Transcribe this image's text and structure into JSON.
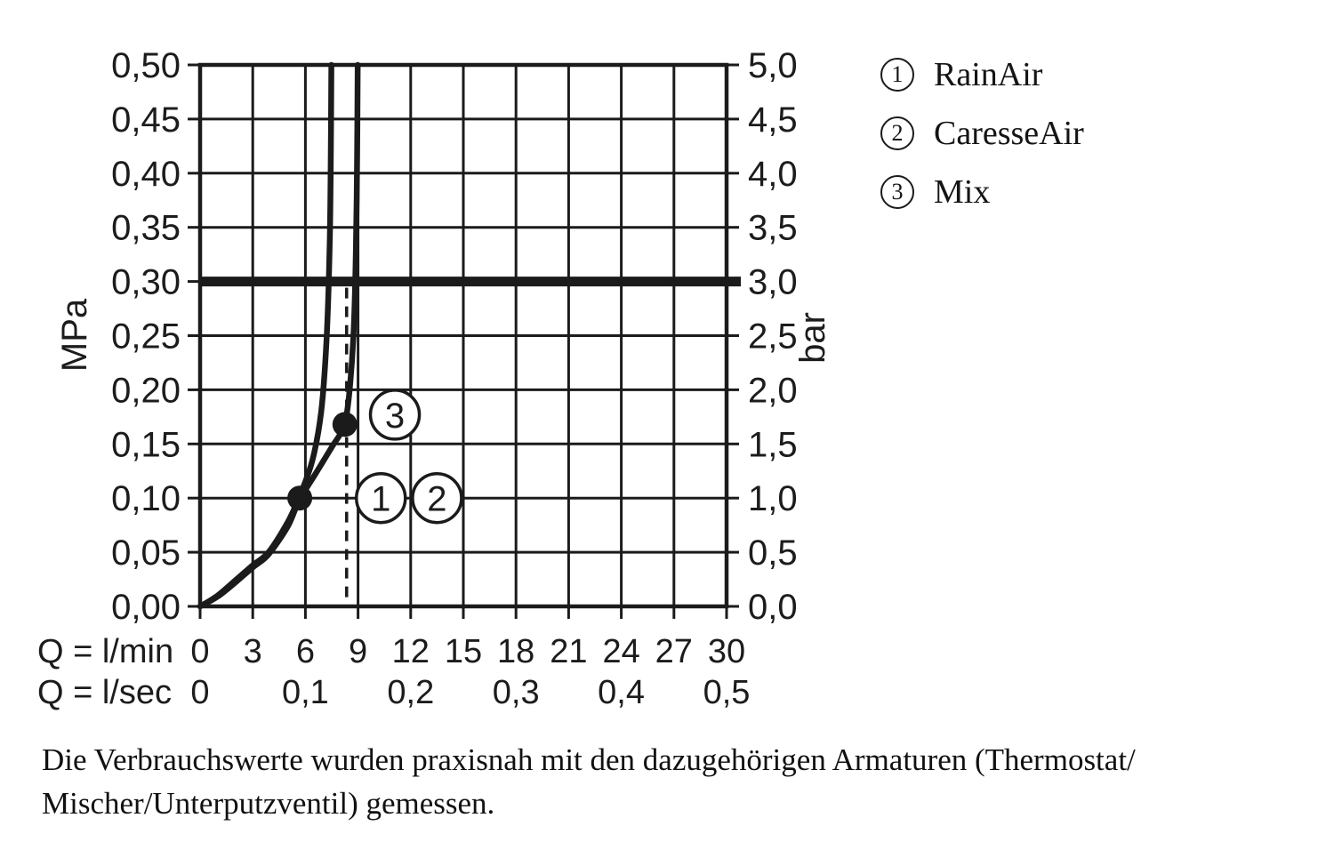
{
  "colors": {
    "ink": "#1b1b1b",
    "background": "#ffffff"
  },
  "chart_data": {
    "type": "line",
    "title": "",
    "grid": true,
    "x_axis": {
      "unit_lmin": "Q = l/min",
      "unit_lsec": "Q = l/sec",
      "min": 0,
      "max": 30,
      "step": 3,
      "ticks_lmin": [
        "0",
        "3",
        "6",
        "9",
        "12",
        "15",
        "18",
        "21",
        "24",
        "27",
        "30"
      ],
      "ticks_lsec": [
        {
          "label": "0",
          "q": 0
        },
        {
          "label": "0,1",
          "q": 6
        },
        {
          "label": "0,2",
          "q": 12
        },
        {
          "label": "0,3",
          "q": 18
        },
        {
          "label": "0,4",
          "q": 24
        },
        {
          "label": "0,5",
          "q": 30
        }
      ]
    },
    "y_axis_left": {
      "label": "MPa",
      "min": 0,
      "max": 0.5,
      "step": 0.05,
      "ticks": [
        "0,50",
        "0,45",
        "0,40",
        "0,35",
        "0,30",
        "0,25",
        "0,20",
        "0,15",
        "0,10",
        "0,05",
        "0,00"
      ]
    },
    "y_axis_right": {
      "label": "bar",
      "min": 0,
      "max": 5,
      "step": 0.5,
      "ticks": [
        "5,0",
        "4,5",
        "4,0",
        "3,5",
        "3,0",
        "2,5",
        "2,0",
        "1,5",
        "1,0",
        "0,5",
        "0,0"
      ]
    },
    "reference_line_mpa": 0.3,
    "dashed_vertical_line": {
      "q": 8.35,
      "from_mpa": 0.3,
      "to_mpa": 0
    },
    "series": [
      {
        "name": "RainAir / CaresseAir (1,2)",
        "points": [
          [
            0,
            0
          ],
          [
            1,
            0.01
          ],
          [
            2,
            0.024
          ],
          [
            3,
            0.038
          ],
          [
            3.9,
            0.05
          ],
          [
            5,
            0.078
          ],
          [
            5.65,
            0.101
          ],
          [
            6.4,
            0.135
          ],
          [
            6.9,
            0.18
          ],
          [
            7.2,
            0.245
          ],
          [
            7.38,
            0.33
          ],
          [
            7.45,
            0.42
          ],
          [
            7.48,
            0.5
          ]
        ]
      },
      {
        "name": "Mix (3)",
        "points": [
          [
            0,
            0
          ],
          [
            1,
            0.009
          ],
          [
            2,
            0.022
          ],
          [
            3,
            0.036
          ],
          [
            3.9,
            0.048
          ],
          [
            5,
            0.074
          ],
          [
            5.65,
            0.098
          ],
          [
            6.6,
            0.123
          ],
          [
            7.5,
            0.147
          ],
          [
            8.1,
            0.162
          ],
          [
            8.3,
            0.172
          ],
          [
            8.55,
            0.205
          ],
          [
            8.75,
            0.255
          ],
          [
            8.88,
            0.33
          ],
          [
            8.95,
            0.42
          ],
          [
            8.98,
            0.5
          ]
        ]
      }
    ],
    "measurement_dots": [
      {
        "q": 5.68,
        "mpa": 0.1
      },
      {
        "q": 8.25,
        "mpa": 0.168
      }
    ],
    "curve_markers": [
      {
        "label": "1",
        "q": 10.3,
        "mpa": 0.1
      },
      {
        "label": "2",
        "q": 13.5,
        "mpa": 0.1
      },
      {
        "label": "3",
        "q": 11.1,
        "mpa": 0.177
      }
    ]
  },
  "legend": {
    "items": [
      {
        "number": "1",
        "label": "RainAir"
      },
      {
        "number": "2",
        "label": "CaresseAir"
      },
      {
        "number": "3",
        "label": "Mix"
      }
    ]
  },
  "caption": {
    "line1": "Die Verbrauchswerte wurden praxisnah mit den dazugehörigen Armaturen (Thermostat/",
    "line2": "Mischer/Unterputzventil) gemessen."
  }
}
